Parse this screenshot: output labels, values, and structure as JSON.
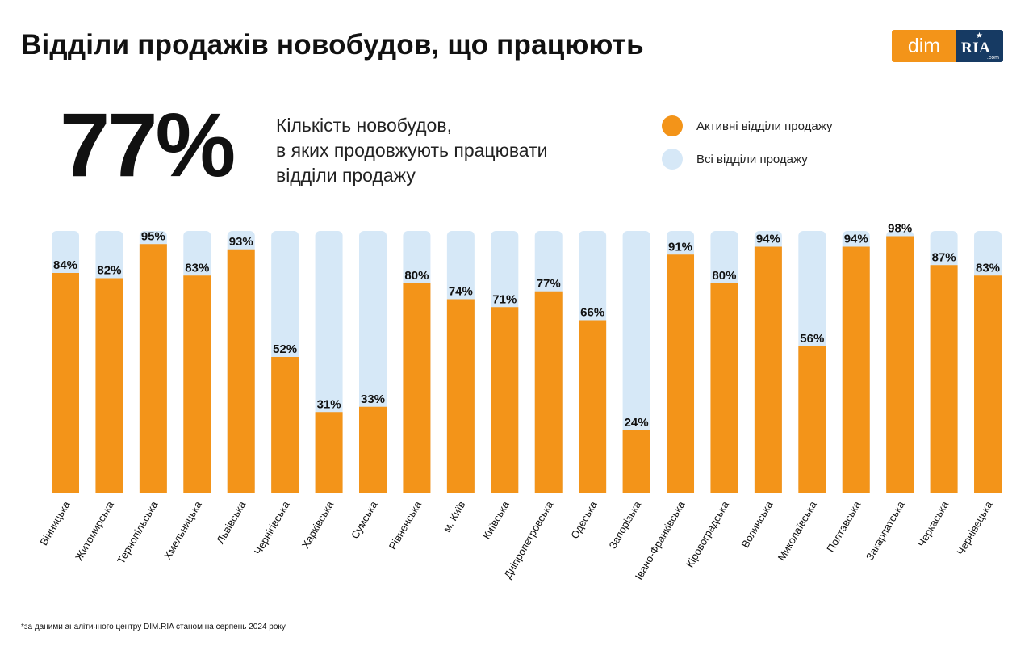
{
  "title": "Відділи продажів новобудов, що працюють",
  "logo": {
    "dim": "dim",
    "ria": "RIA",
    "ria_suffix": ".com"
  },
  "headline": {
    "value": "77%",
    "description_lines": [
      "Кількість новобудов,",
      "в яких продовжують працювати",
      "відділи продажу"
    ]
  },
  "legend": [
    {
      "label": "Активні відділи продажу",
      "color": "#f39419"
    },
    {
      "label": "Всі відділи продажу",
      "color": "#d6e8f7"
    }
  ],
  "chart_data": {
    "type": "bar",
    "categories": [
      "Вінницька",
      "Житомирська",
      "Тернопільська",
      "Хмельницька",
      "Львівська",
      "Чернігівська",
      "Харківська",
      "Сумська",
      "Рівненська",
      "м. Київ",
      "Київська",
      "Дніпропетровська",
      "Одеська",
      "Запорізька",
      "Івано-Франківська",
      "Кіровоградська",
      "Волинська",
      "Миколаївська",
      "Полтавська",
      "Закарпатська",
      "Черкаська",
      "Чернівецька"
    ],
    "series": [
      {
        "name": "Активні відділи продажу",
        "values": [
          84,
          82,
          95,
          83,
          93,
          52,
          31,
          33,
          80,
          74,
          71,
          77,
          66,
          24,
          91,
          80,
          94,
          56,
          94,
          98,
          87,
          83
        ]
      },
      {
        "name": "Всі відділи продажу",
        "values": [
          100,
          100,
          100,
          100,
          100,
          100,
          100,
          100,
          100,
          100,
          100,
          100,
          100,
          100,
          100,
          100,
          100,
          100,
          100,
          100,
          100,
          100
        ]
      }
    ],
    "value_labels": [
      "84%",
      "82%",
      "95%",
      "83%",
      "93%",
      "52%",
      "31%",
      "33%",
      "80%",
      "74%",
      "71%",
      "77%",
      "66%",
      "24%",
      "91%",
      "80%",
      "94%",
      "56%",
      "94%",
      "98%",
      "87%",
      "83%"
    ],
    "ylim": [
      0,
      100
    ],
    "grid": false,
    "legend_position": "top-right",
    "colors": {
      "active": "#f39419",
      "all": "#d6e8f7"
    }
  },
  "footnote": "*за даними аналітичного центру DIM.RIA станом на серпень 2024 року"
}
